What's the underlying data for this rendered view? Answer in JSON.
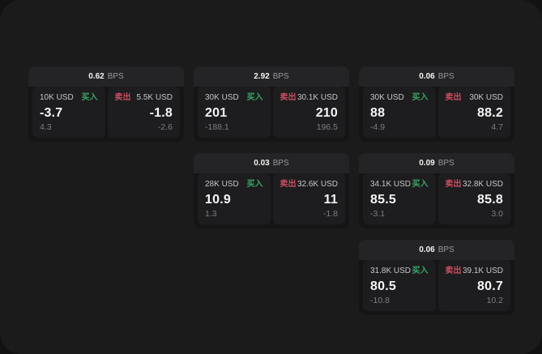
{
  "labels": {
    "bps_unit": "BPS",
    "buy": "买入",
    "sell": "卖出"
  },
  "colors": {
    "buy_green": "#3aa565",
    "sell_red": "#cb4e60",
    "window_bg": "#1b1b1c",
    "card_bg": "#242426",
    "pane_bg": "#1d1d1f"
  },
  "cards": [
    {
      "bps": "0.62",
      "buy": {
        "amount": "10K USD",
        "price": "-3.7",
        "delta": "4.3"
      },
      "sell": {
        "amount": "5.5K USD",
        "price": "-1.8",
        "delta": "-2.6"
      }
    },
    {
      "bps": "2.92",
      "buy": {
        "amount": "30K USD",
        "price": "201",
        "delta": "-188.1"
      },
      "sell": {
        "amount": "30.1K USD",
        "price": "210",
        "delta": "196.5"
      }
    },
    {
      "bps": "0.06",
      "buy": {
        "amount": "30K USD",
        "price": "88",
        "delta": "-4.9"
      },
      "sell": {
        "amount": "30K USD",
        "price": "88.2",
        "delta": "4.7"
      }
    },
    {
      "bps": "0.03",
      "buy": {
        "amount": "28K USD",
        "price": "10.9",
        "delta": "1.3"
      },
      "sell": {
        "amount": "32.6K USD",
        "price": "11",
        "delta": "-1.8"
      }
    },
    {
      "bps": "0.09",
      "buy": {
        "amount": "34.1K USD",
        "price": "85.5",
        "delta": "-3.1"
      },
      "sell": {
        "amount": "32.8K USD",
        "price": "85.8",
        "delta": "3.0"
      }
    },
    {
      "bps": "0.06",
      "buy": {
        "amount": "31.8K USD",
        "price": "80.5",
        "delta": "-10.8"
      },
      "sell": {
        "amount": "39.1K USD",
        "price": "80.7",
        "delta": "10.2"
      }
    }
  ]
}
